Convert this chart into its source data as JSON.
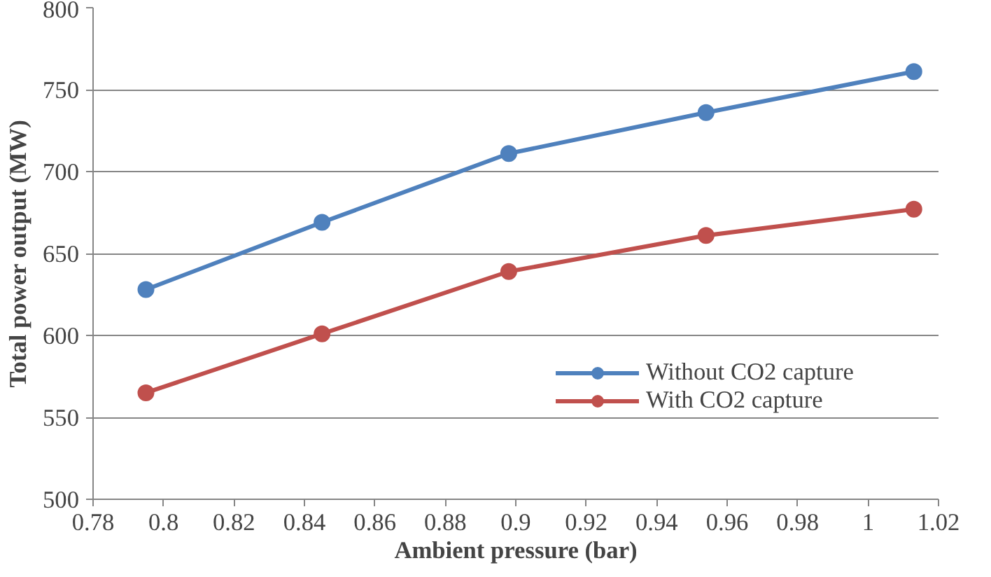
{
  "chart_data": {
    "type": "line",
    "xlabel": "Ambient pressure (bar)",
    "ylabel": "Total power output (MW)",
    "x": [
      0.795,
      0.845,
      0.898,
      0.954,
      1.013
    ],
    "series": [
      {
        "name": "Without CO2 capture",
        "color": "#4f81bd",
        "values": [
          628,
          669,
          711,
          736,
          761
        ]
      },
      {
        "name": "With CO2 capture",
        "color": "#c0504d",
        "values": [
          565,
          601,
          639,
          661,
          677
        ]
      }
    ],
    "xlim": [
      0.78,
      1.02
    ],
    "xticks": [
      0.78,
      0.8,
      0.82,
      0.84,
      0.86,
      0.88,
      0.9,
      0.92,
      0.94,
      0.96,
      0.98,
      1,
      1.02
    ],
    "ylim": [
      500,
      800
    ],
    "yticks": [
      500,
      550,
      600,
      650,
      700,
      750,
      800
    ],
    "grid": "y",
    "legend": "bottom right",
    "marker": "circle",
    "line_style": "solid"
  }
}
